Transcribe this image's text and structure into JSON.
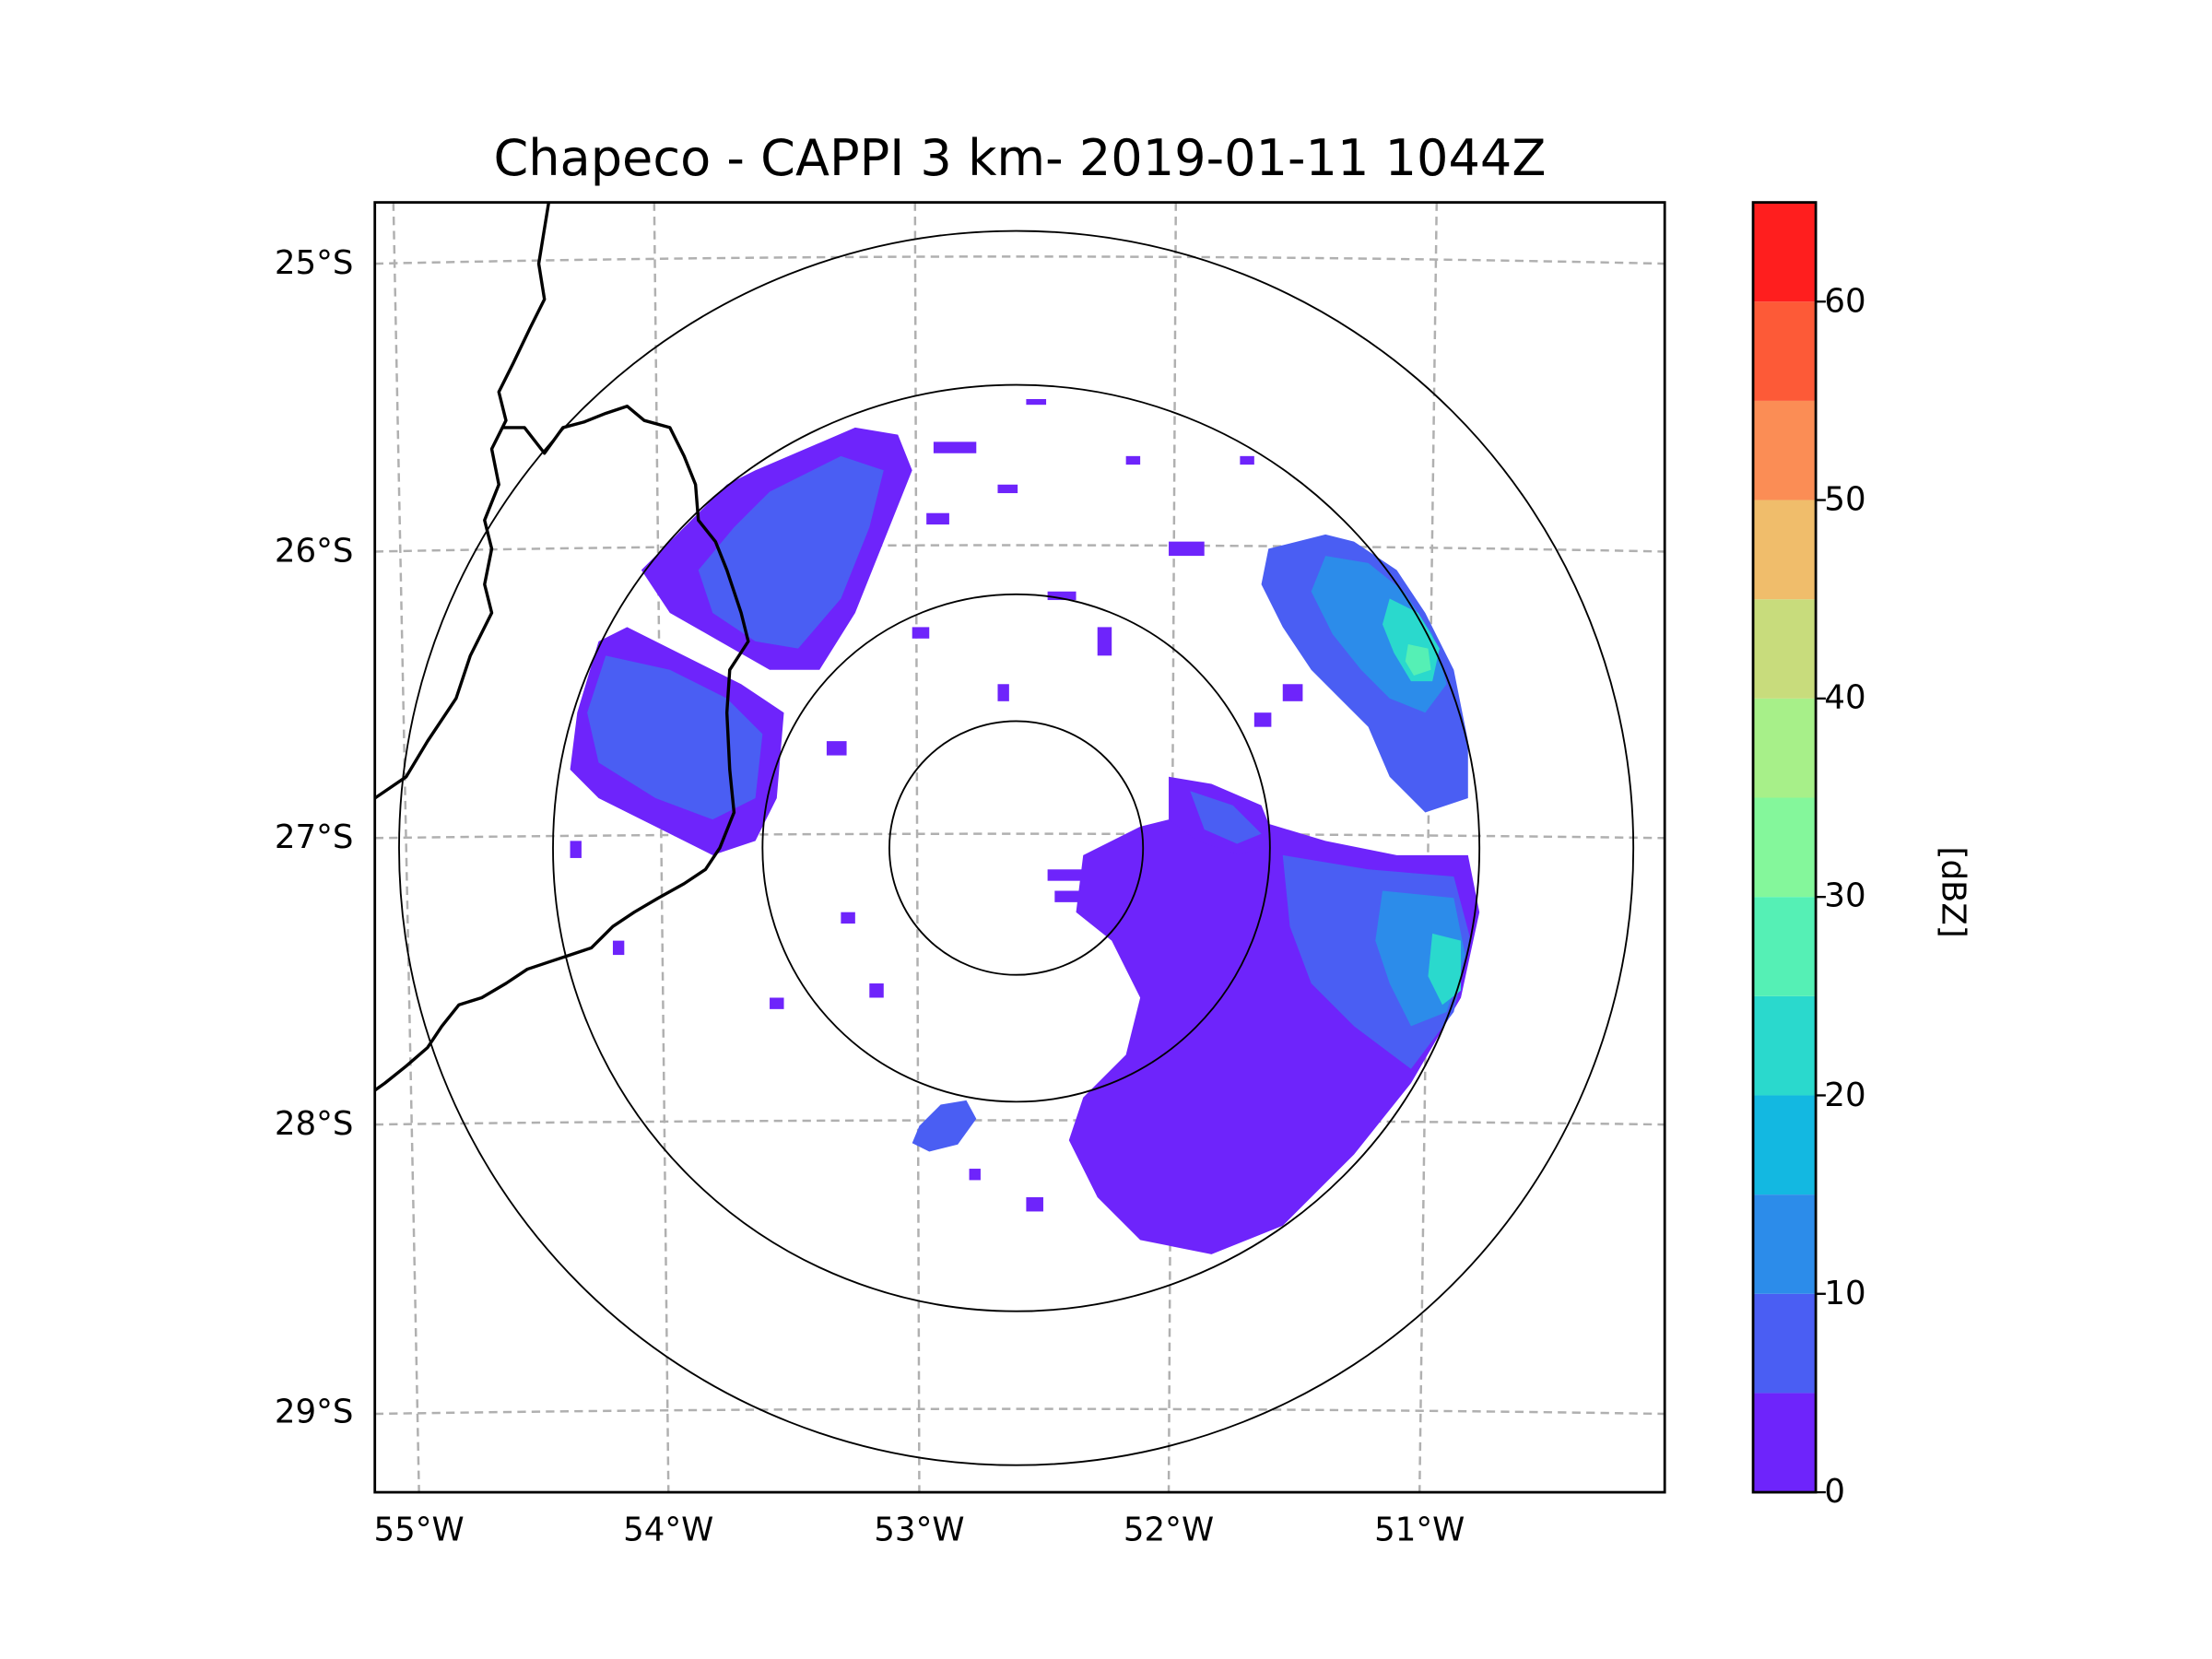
{
  "title": "Chapeco - CAPPI 3 km- 2019-01-11 1044Z",
  "map": {
    "radar_site": "Chapeco",
    "product": "CAPPI 3 km",
    "datetime": "2019-01-11 1044Z",
    "lat_labels": [
      "25°S",
      "26°S",
      "27°S",
      "28°S",
      "29°S"
    ],
    "lon_labels": [
      "55°W",
      "54°W",
      "53°W",
      "52°W",
      "51°W"
    ],
    "range_rings_count": 4,
    "gridlines": "dashed gray"
  },
  "colorbar": {
    "label": "[dBZ]",
    "ticks": [
      "0",
      "10",
      "20",
      "30",
      "40",
      "50",
      "60"
    ],
    "min": 0,
    "max": 65,
    "step": 5,
    "colors": [
      "#6e24fb",
      "#4a5ef3",
      "#2c8cea",
      "#13b8e1",
      "#2ad9cd",
      "#55f0b5",
      "#84f79b",
      "#a7f089",
      "#c8dc7c",
      "#f0bd6b",
      "#fb8d55",
      "#fd5a37",
      "#ff1e1e"
    ]
  },
  "echo_colors": {
    "weak": "#6e24fb",
    "light": "#4a5ef3",
    "moderate": "#2c8cea",
    "strong": "#2ad9cd",
    "strongest": "#55f0b5"
  }
}
